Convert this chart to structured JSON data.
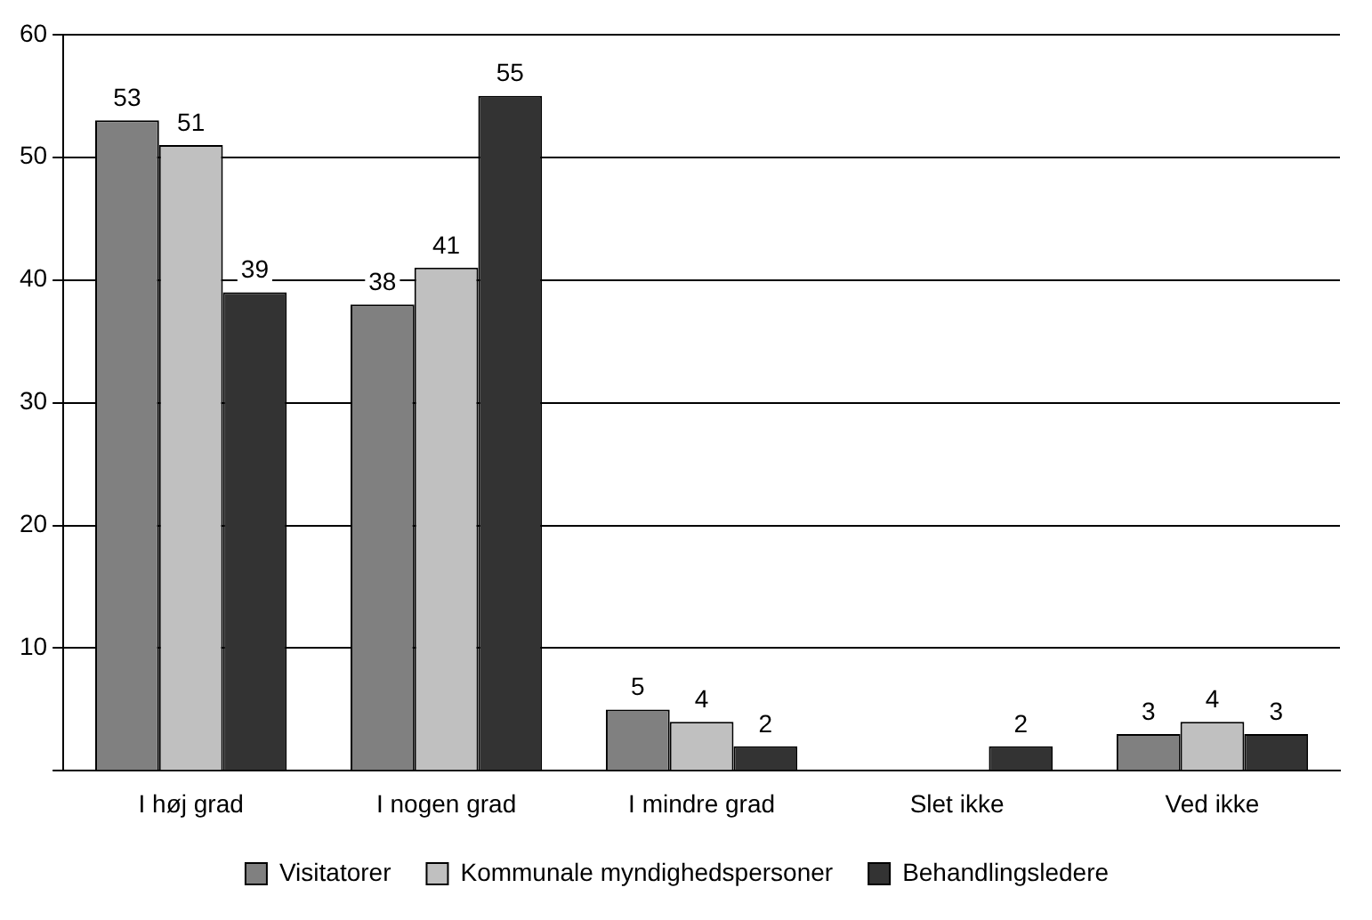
{
  "chart_data": {
    "type": "bar",
    "categories": [
      "I høj grad",
      "I nogen grad",
      "I mindre grad",
      "Slet ikke",
      "Ved ikke"
    ],
    "series": [
      {
        "name": "Visitatorer",
        "color": "#808080",
        "values": [
          53,
          38,
          5,
          null,
          3
        ]
      },
      {
        "name": "Kommunale myndighedspersoner",
        "color": "#c0c0c0",
        "values": [
          51,
          41,
          4,
          null,
          4
        ]
      },
      {
        "name": "Behandlingsledere",
        "color": "#333333",
        "values": [
          39,
          55,
          2,
          2,
          3
        ]
      }
    ],
    "ylim": [
      0,
      60
    ],
    "yticks": [
      {
        "value": 0,
        "label": null
      },
      10,
      20,
      30,
      40,
      50,
      60
    ],
    "grid": "y",
    "legend": "bottom",
    "data_labels": true
  }
}
